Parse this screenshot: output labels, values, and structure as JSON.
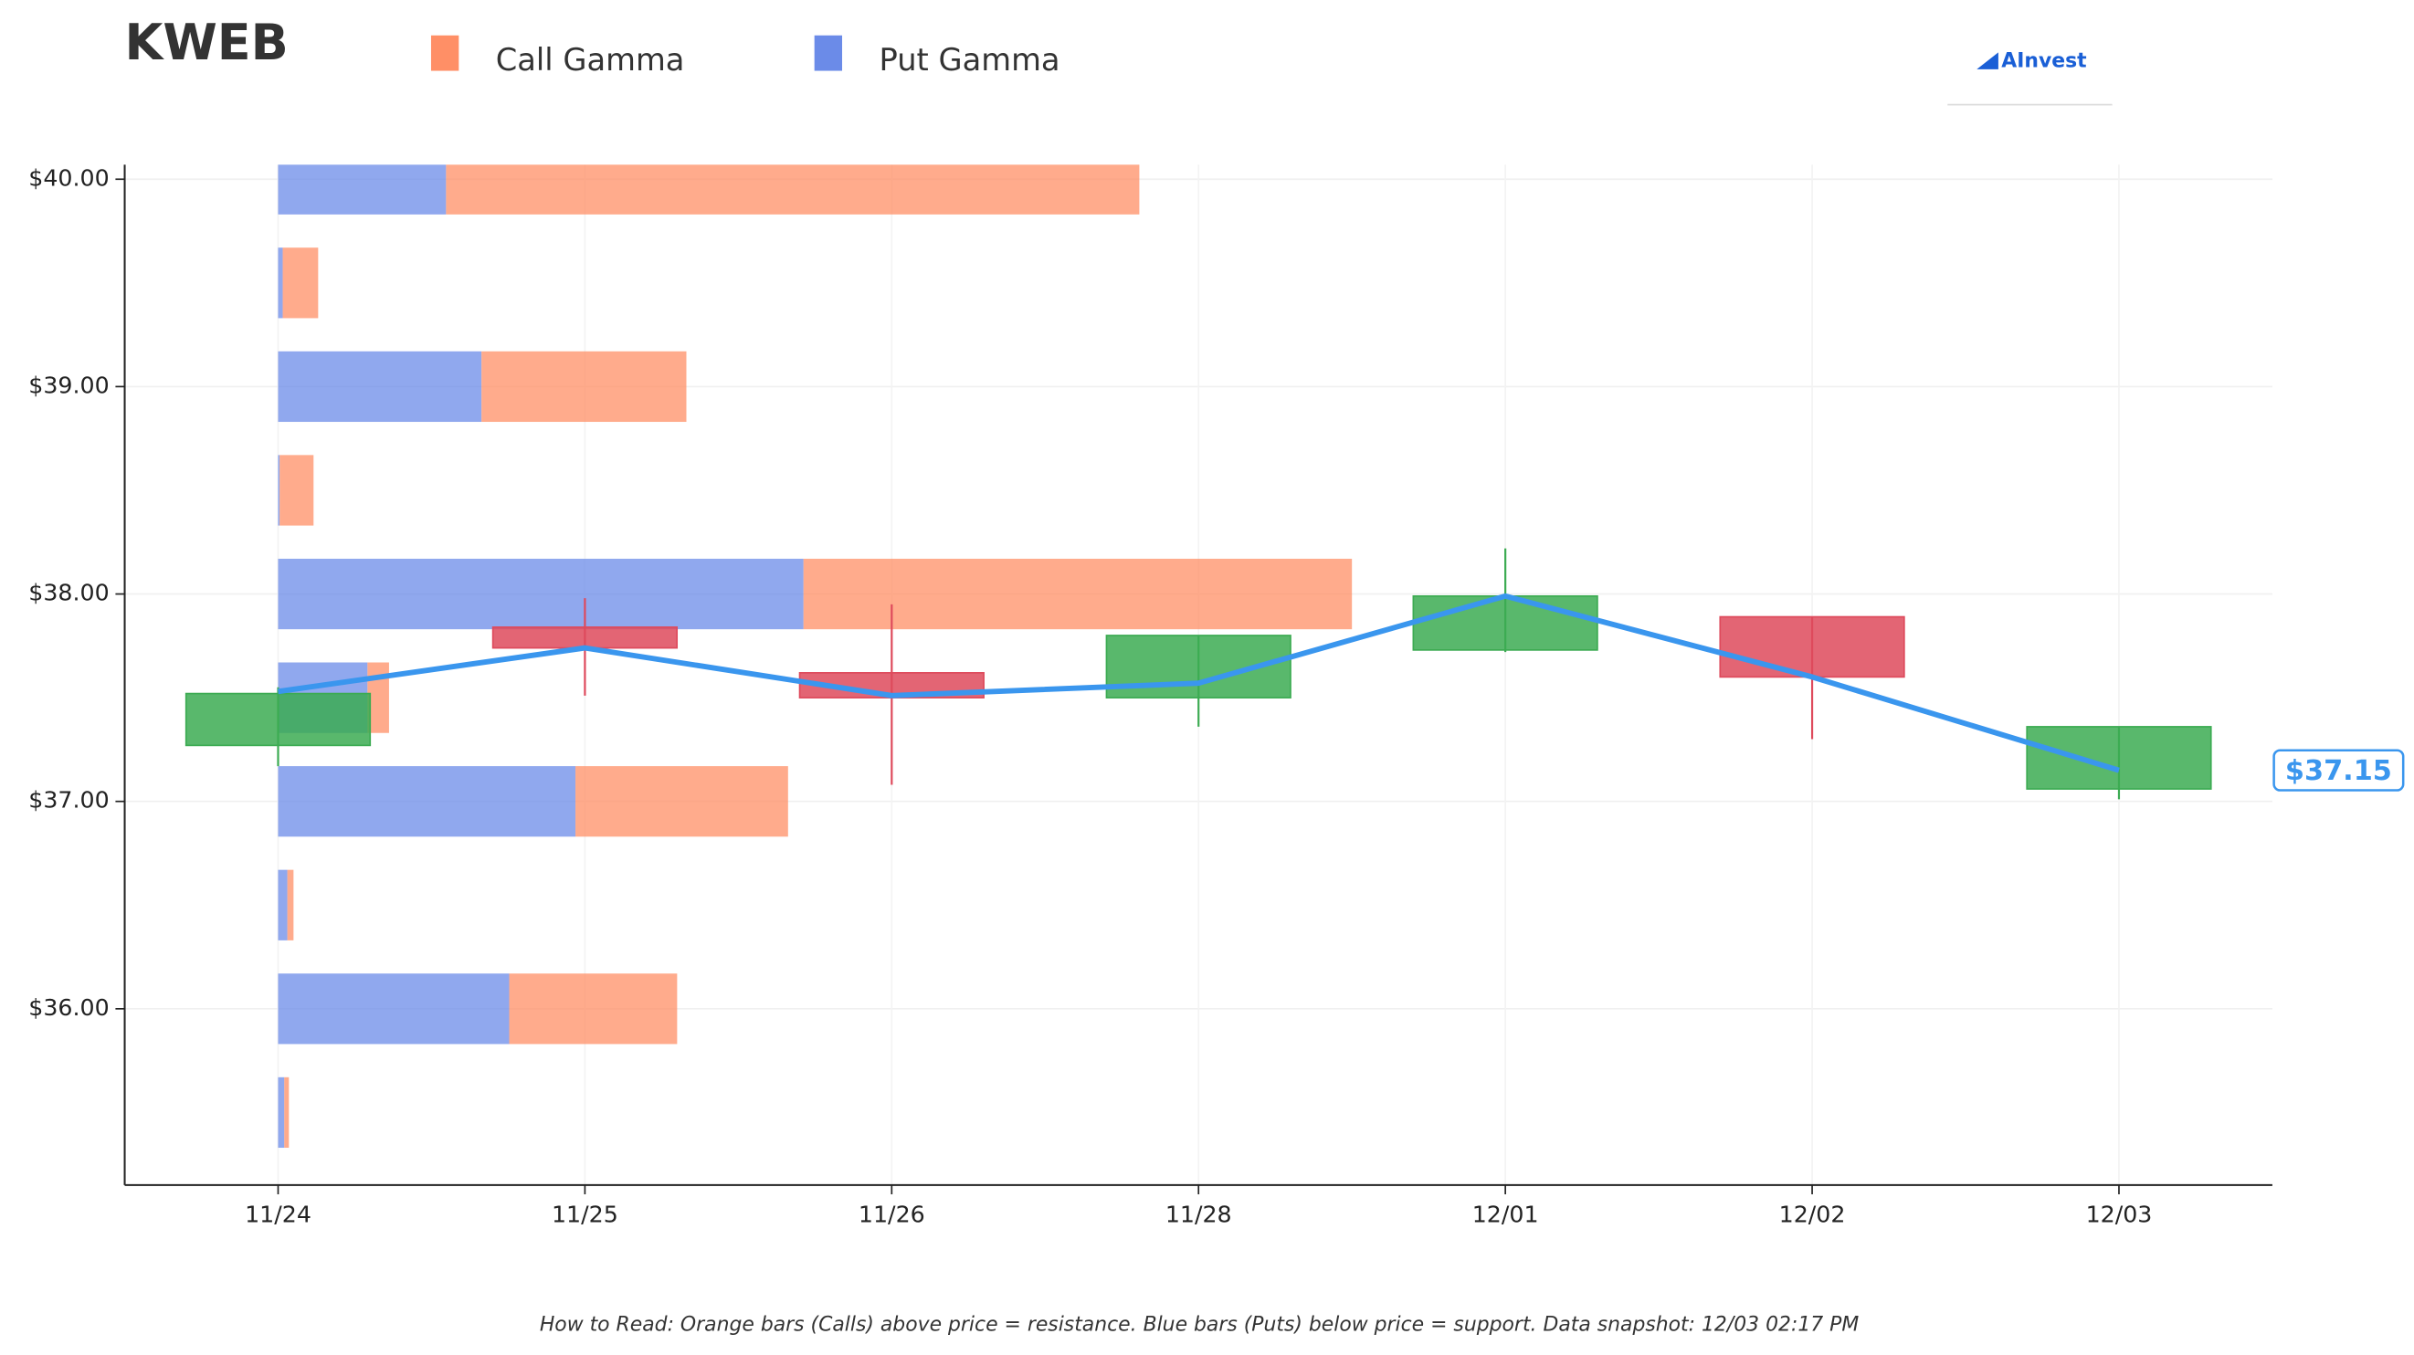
{
  "chart_data": {
    "type": "candlestick",
    "title": "KWEB",
    "logo": "AInvest",
    "note": "How to Read: Orange bars (Calls) above price = resistance. Blue bars (Puts) below price = support. Data snapshot: 12/03 02:17 PM",
    "categories": [
      "11/24",
      "11/25",
      "11/26",
      "11/28",
      "12/01",
      "12/02",
      "12/03"
    ],
    "open": [
      37.27,
      37.84,
      37.62,
      37.5,
      37.73,
      37.89,
      37.06
    ],
    "high": [
      37.55,
      37.98,
      37.95,
      37.8,
      38.22,
      37.89,
      37.36
    ],
    "low": [
      37.17,
      37.51,
      37.08,
      37.36,
      37.72,
      37.3,
      37.01
    ],
    "close": [
      37.52,
      37.74,
      37.5,
      37.8,
      37.99,
      37.6,
      37.36
    ],
    "up_color": "#3cab52",
    "down_color": "#de4a5c",
    "price_line": {
      "color": "#3a96ee",
      "values": [
        37.53,
        37.74,
        37.51,
        37.57,
        37.99,
        37.6,
        37.15
      ]
    },
    "price_label": {
      "value": 37.15,
      "label": "$37.15"
    },
    "gamma_bars": {
      "strikes": [
        40.0,
        39.5,
        39.0,
        38.5,
        38.0,
        37.5,
        37.0,
        36.5,
        36.0,
        35.5
      ],
      "series": [
        {
          "name": "Call Gamma",
          "color": "#ff8f66",
          "values": [
            450,
            23,
            133,
            22,
            356,
            14,
            138,
            4,
            109,
            3
          ]
        },
        {
          "name": "Put Gamma",
          "color": "#6b8be8",
          "values": [
            109,
            3,
            132,
            1,
            341,
            58,
            193,
            6,
            150,
            4
          ]
        }
      ]
    },
    "ylim": [
      35.15,
      40.07
    ],
    "yticks": [
      {
        "value": 36,
        "label": "$36.00"
      },
      {
        "value": 37,
        "label": "$37.00"
      },
      {
        "value": 38,
        "label": "$38.00"
      },
      {
        "value": 39,
        "label": "$39.00"
      },
      {
        "value": 40,
        "label": "$40.00"
      }
    ],
    "grid": true
  }
}
